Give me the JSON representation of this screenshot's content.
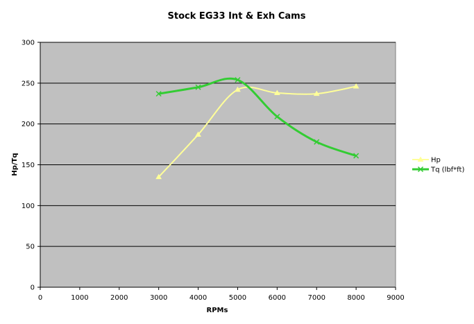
{
  "chart_data": {
    "type": "line",
    "title": "Stock EG33 Int & Exh Cams",
    "xlabel": "RPMs",
    "ylabel": "Hp/Tq",
    "xlim": [
      0,
      9000
    ],
    "ylim": [
      0,
      300
    ],
    "x_ticks": [
      "0",
      "1000",
      "2000",
      "3000",
      "4000",
      "5000",
      "6000",
      "7000",
      "8000",
      "9000"
    ],
    "y_ticks": [
      "0",
      "50",
      "100",
      "150",
      "200",
      "250",
      "300"
    ],
    "grid": "horizontal",
    "legend": "right",
    "plot_background": "#c0c0c0",
    "series": [
      {
        "name": "Hp",
        "marker": "triangle",
        "color": "#ffff99",
        "x": [
          3000,
          4000,
          5000,
          6000,
          7000,
          8000
        ],
        "y": [
          135,
          187,
          242,
          238,
          237,
          246
        ]
      },
      {
        "name": "Tq (lbf*ft)",
        "marker": "x",
        "color": "#33cc33",
        "x": [
          3000,
          4000,
          5000,
          6000,
          7000,
          8000
        ],
        "y": [
          237,
          245,
          254,
          209,
          178,
          161
        ]
      }
    ]
  }
}
